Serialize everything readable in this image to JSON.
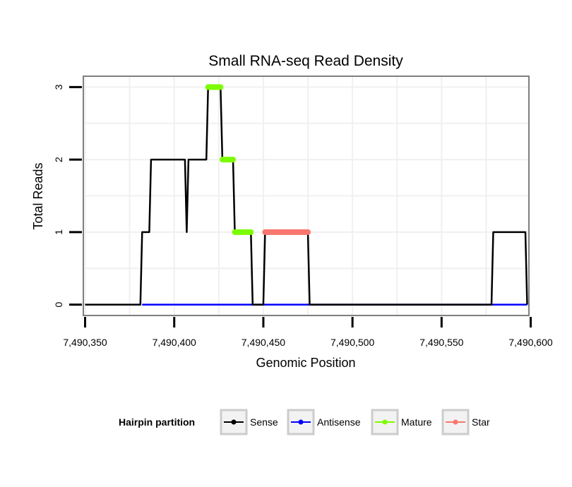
{
  "chart_data": {
    "type": "line",
    "title": "Small RNA-seq Read Density",
    "xlabel": "Genomic Position",
    "ylabel": "Total Reads",
    "xlim": [
      7490349,
      7490599
    ],
    "ylim": [
      -0.15,
      3.15
    ],
    "x_ticks": [
      {
        "value": 7490350,
        "label": "7,490,350"
      },
      {
        "value": 7490400,
        "label": "7,490,400"
      },
      {
        "value": 7490450,
        "label": "7,490,450"
      },
      {
        "value": 7490500,
        "label": "7,490,500"
      },
      {
        "value": 7490550,
        "label": "7,490,550"
      },
      {
        "value": 7490600,
        "label": "7,490,600"
      }
    ],
    "y_ticks": [
      {
        "value": 0,
        "label": "0"
      },
      {
        "value": 1,
        "label": "1"
      },
      {
        "value": 2,
        "label": "2"
      },
      {
        "value": 3,
        "label": "3"
      }
    ],
    "legend": {
      "title": "Hairpin partition",
      "position": "bottom",
      "entries": [
        "Sense",
        "Antisense",
        "Mature",
        "Star"
      ]
    },
    "series": [
      {
        "name": "Sense",
        "color": "#000000",
        "points": [
          [
            7490350,
            0
          ],
          [
            7490381,
            0
          ],
          [
            7490382,
            1
          ],
          [
            7490386,
            1
          ],
          [
            7490387,
            2
          ],
          [
            7490406,
            2
          ],
          [
            7490407,
            1
          ],
          [
            7490408,
            2
          ],
          [
            7490418,
            2
          ],
          [
            7490419,
            3
          ],
          [
            7490426,
            3
          ],
          [
            7490427,
            2
          ],
          [
            7490433,
            2
          ],
          [
            7490434,
            1
          ],
          [
            7490443,
            1
          ],
          [
            7490444,
            0
          ],
          [
            7490450,
            0
          ],
          [
            7490451,
            1
          ],
          [
            7490475,
            1
          ],
          [
            7490476,
            0
          ],
          [
            7490578,
            0
          ],
          [
            7490579,
            1
          ],
          [
            7490597,
            1
          ],
          [
            7490598,
            0
          ]
        ]
      },
      {
        "name": "Antisense",
        "color": "#0000ff",
        "points": [
          [
            7490382,
            0
          ],
          [
            7490598,
            0
          ]
        ]
      },
      {
        "name": "Mature",
        "color": "#7cfc00",
        "segments": [
          {
            "from": 7490419,
            "to": 7490426,
            "y": 3
          },
          {
            "from": 7490427,
            "to": 7490433,
            "y": 2
          },
          {
            "from": 7490434,
            "to": 7490443,
            "y": 1
          }
        ]
      },
      {
        "name": "Star",
        "color": "#f8766d",
        "segments": [
          {
            "from": 7490451,
            "to": 7490475,
            "y": 1
          }
        ]
      }
    ]
  }
}
